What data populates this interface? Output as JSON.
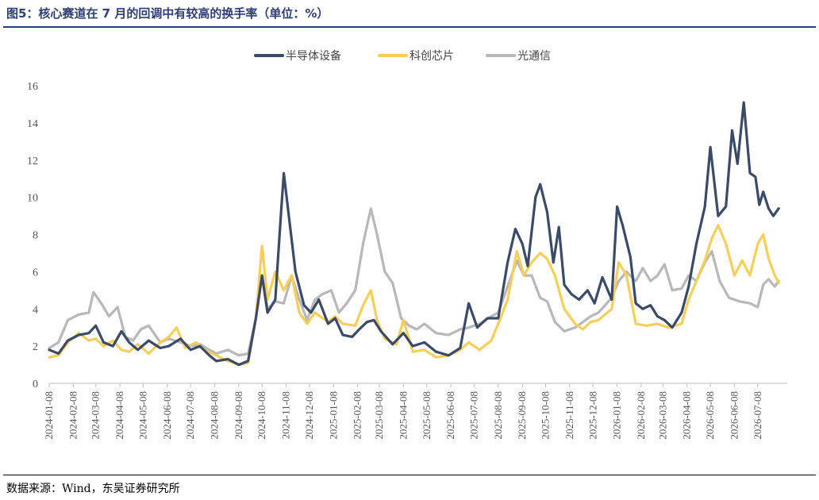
{
  "title": "图5：核心赛道在 7 月的回调中有较高的换手率（单位：%）",
  "source": "数据来源：Wind，东吴证券研究所",
  "chart_data": {
    "type": "line",
    "xlabel": "",
    "ylabel": "",
    "ylim": [
      0,
      16
    ],
    "yticks": [
      0,
      2,
      4,
      6,
      8,
      10,
      12,
      14,
      16
    ],
    "grid": false,
    "legend_position": "top-center",
    "x_ticks": [
      "2024-01-08",
      "2024-02-08",
      "2024-03-08",
      "2024-04-08",
      "2024-05-08",
      "2024-06-08",
      "2024-07-08",
      "2024-08-08",
      "2024-09-08",
      "2024-10-08",
      "2024-11-08",
      "2024-12-08",
      "2025-01-08",
      "2025-02-08",
      "2025-03-08",
      "2025-04-08",
      "2025-05-08",
      "2025-06-08",
      "2025-07-08",
      "2025-08-08",
      "2025-09-08",
      "2025-10-08",
      "2025-11-08",
      "2025-12-08",
      "2026-01-08",
      "2026-02-08",
      "2026-03-08",
      "2026-04-08",
      "2026-05-08",
      "2026-06-08",
      "2026-07-08"
    ],
    "x_start": "2024-01-08",
    "x_end": "2026-08-15",
    "series": [
      {
        "name": "半导体设备",
        "color": "#3b4a66",
        "points": [
          [
            "2024-01-08",
            1.8
          ],
          [
            "2024-01-20",
            1.6
          ],
          [
            "2024-02-01",
            2.3
          ],
          [
            "2024-02-15",
            2.6
          ],
          [
            "2024-02-28",
            2.7
          ],
          [
            "2024-03-08",
            3.1
          ],
          [
            "2024-03-18",
            2.2
          ],
          [
            "2024-03-30",
            2.0
          ],
          [
            "2024-04-10",
            2.8
          ],
          [
            "2024-04-20",
            2.2
          ],
          [
            "2024-05-01",
            1.8
          ],
          [
            "2024-05-15",
            2.3
          ],
          [
            "2024-05-30",
            1.9
          ],
          [
            "2024-06-10",
            2.0
          ],
          [
            "2024-06-25",
            2.4
          ],
          [
            "2024-07-08",
            1.8
          ],
          [
            "2024-07-20",
            2.0
          ],
          [
            "2024-08-01",
            1.5
          ],
          [
            "2024-08-10",
            1.2
          ],
          [
            "2024-08-25",
            1.3
          ],
          [
            "2024-09-08",
            1.0
          ],
          [
            "2024-09-20",
            1.2
          ],
          [
            "2024-09-30",
            3.5
          ],
          [
            "2024-10-08",
            5.8
          ],
          [
            "2024-10-15",
            3.8
          ],
          [
            "2024-10-25",
            4.5
          ],
          [
            "2024-11-01",
            8.9
          ],
          [
            "2024-11-05",
            11.3
          ],
          [
            "2024-11-12",
            8.8
          ],
          [
            "2024-11-20",
            6.0
          ],
          [
            "2024-12-01",
            4.2
          ],
          [
            "2024-12-10",
            3.8
          ],
          [
            "2024-12-20",
            4.5
          ],
          [
            "2025-01-01",
            3.2
          ],
          [
            "2025-01-10",
            3.5
          ],
          [
            "2025-01-20",
            2.6
          ],
          [
            "2025-02-01",
            2.5
          ],
          [
            "2025-02-10",
            2.9
          ],
          [
            "2025-02-20",
            3.3
          ],
          [
            "2025-03-01",
            3.4
          ],
          [
            "2025-03-10",
            2.8
          ],
          [
            "2025-03-25",
            2.1
          ],
          [
            "2025-04-08",
            2.7
          ],
          [
            "2025-04-20",
            2.0
          ],
          [
            "2025-05-05",
            2.2
          ],
          [
            "2025-05-20",
            1.7
          ],
          [
            "2025-06-05",
            1.5
          ],
          [
            "2025-06-20",
            1.9
          ],
          [
            "2025-07-01",
            4.3
          ],
          [
            "2025-07-12",
            3.0
          ],
          [
            "2025-07-25",
            3.5
          ],
          [
            "2025-08-08",
            3.5
          ],
          [
            "2025-08-20",
            6.5
          ],
          [
            "2025-08-30",
            8.3
          ],
          [
            "2025-09-08",
            7.5
          ],
          [
            "2025-09-15",
            6.3
          ],
          [
            "2025-09-25",
            10.0
          ],
          [
            "2025-10-01",
            10.7
          ],
          [
            "2025-10-10",
            9.2
          ],
          [
            "2025-10-18",
            6.5
          ],
          [
            "2025-10-25",
            8.4
          ],
          [
            "2025-11-01",
            5.3
          ],
          [
            "2025-11-10",
            4.8
          ],
          [
            "2025-11-20",
            4.5
          ],
          [
            "2025-12-01",
            5.0
          ],
          [
            "2025-12-10",
            4.3
          ],
          [
            "2025-12-20",
            5.7
          ],
          [
            "2026-01-01",
            4.5
          ],
          [
            "2026-01-08",
            9.5
          ],
          [
            "2026-01-15",
            8.5
          ],
          [
            "2026-01-25",
            6.8
          ],
          [
            "2026-02-01",
            4.3
          ],
          [
            "2026-02-10",
            4.0
          ],
          [
            "2026-02-20",
            4.2
          ],
          [
            "2026-03-01",
            3.6
          ],
          [
            "2026-03-10",
            3.4
          ],
          [
            "2026-03-20",
            3.0
          ],
          [
            "2026-04-01",
            3.8
          ],
          [
            "2026-04-10",
            5.2
          ],
          [
            "2026-04-20",
            7.5
          ],
          [
            "2026-05-01",
            9.5
          ],
          [
            "2026-05-08",
            12.7
          ],
          [
            "2026-05-18",
            9.0
          ],
          [
            "2026-05-28",
            9.5
          ],
          [
            "2026-06-05",
            13.6
          ],
          [
            "2026-06-12",
            11.8
          ],
          [
            "2026-06-20",
            15.1
          ],
          [
            "2026-06-28",
            11.3
          ],
          [
            "2026-07-05",
            11.1
          ],
          [
            "2026-07-10",
            9.6
          ],
          [
            "2026-07-15",
            10.3
          ],
          [
            "2026-07-22",
            9.4
          ],
          [
            "2026-07-28",
            9.0
          ],
          [
            "2026-08-04",
            9.4
          ]
        ]
      },
      {
        "name": "科创芯片",
        "color": "#f6cf5a",
        "points": [
          [
            "2024-01-08",
            1.4
          ],
          [
            "2024-01-20",
            1.5
          ],
          [
            "2024-02-01",
            2.2
          ],
          [
            "2024-02-15",
            2.7
          ],
          [
            "2024-02-28",
            2.3
          ],
          [
            "2024-03-08",
            2.4
          ],
          [
            "2024-03-18",
            2.0
          ],
          [
            "2024-03-30",
            2.3
          ],
          [
            "2024-04-10",
            1.8
          ],
          [
            "2024-04-20",
            1.7
          ],
          [
            "2024-05-01",
            2.1
          ],
          [
            "2024-05-15",
            1.6
          ],
          [
            "2024-05-30",
            2.2
          ],
          [
            "2024-06-10",
            2.5
          ],
          [
            "2024-06-20",
            3.0
          ],
          [
            "2024-07-01",
            1.9
          ],
          [
            "2024-07-15",
            2.2
          ],
          [
            "2024-07-25",
            1.8
          ],
          [
            "2024-08-10",
            1.5
          ],
          [
            "2024-08-25",
            1.2
          ],
          [
            "2024-09-08",
            1.0
          ],
          [
            "2024-09-20",
            1.1
          ],
          [
            "2024-09-30",
            3.5
          ],
          [
            "2024-10-08",
            7.4
          ],
          [
            "2024-10-15",
            4.5
          ],
          [
            "2024-10-25",
            6.0
          ],
          [
            "2024-11-05",
            5.0
          ],
          [
            "2024-11-15",
            5.8
          ],
          [
            "2024-11-25",
            3.8
          ],
          [
            "2024-12-05",
            3.2
          ],
          [
            "2024-12-15",
            3.8
          ],
          [
            "2025-01-01",
            3.3
          ],
          [
            "2025-01-10",
            3.6
          ],
          [
            "2025-01-20",
            3.2
          ],
          [
            "2025-02-05",
            3.1
          ],
          [
            "2025-02-15",
            4.2
          ],
          [
            "2025-02-25",
            5.0
          ],
          [
            "2025-03-05",
            3.4
          ],
          [
            "2025-03-15",
            2.4
          ],
          [
            "2025-03-30",
            2.1
          ],
          [
            "2025-04-08",
            3.4
          ],
          [
            "2025-04-20",
            1.7
          ],
          [
            "2025-05-05",
            1.8
          ],
          [
            "2025-05-20",
            1.4
          ],
          [
            "2025-06-05",
            1.5
          ],
          [
            "2025-06-20",
            1.8
          ],
          [
            "2025-07-01",
            2.2
          ],
          [
            "2025-07-15",
            1.8
          ],
          [
            "2025-07-30",
            2.3
          ],
          [
            "2025-08-08",
            3.2
          ],
          [
            "2025-08-20",
            4.5
          ],
          [
            "2025-09-01",
            7.1
          ],
          [
            "2025-09-10",
            5.8
          ],
          [
            "2025-09-20",
            6.5
          ],
          [
            "2025-10-01",
            7.0
          ],
          [
            "2025-10-10",
            6.7
          ],
          [
            "2025-10-20",
            5.8
          ],
          [
            "2025-11-01",
            4.0
          ],
          [
            "2025-11-15",
            3.2
          ],
          [
            "2025-11-25",
            2.9
          ],
          [
            "2025-12-05",
            3.3
          ],
          [
            "2025-12-15",
            3.4
          ],
          [
            "2026-01-01",
            4.0
          ],
          [
            "2026-01-10",
            6.5
          ],
          [
            "2026-01-20",
            5.8
          ],
          [
            "2026-02-01",
            3.2
          ],
          [
            "2026-02-15",
            3.1
          ],
          [
            "2026-03-01",
            3.2
          ],
          [
            "2026-03-15",
            3.0
          ],
          [
            "2026-04-01",
            3.2
          ],
          [
            "2026-04-10",
            4.5
          ],
          [
            "2026-04-20",
            5.5
          ],
          [
            "2026-05-01",
            6.6
          ],
          [
            "2026-05-10",
            7.8
          ],
          [
            "2026-05-18",
            8.5
          ],
          [
            "2026-05-28",
            7.5
          ],
          [
            "2026-06-08",
            5.8
          ],
          [
            "2026-06-18",
            6.6
          ],
          [
            "2026-06-28",
            5.8
          ],
          [
            "2026-07-08",
            7.5
          ],
          [
            "2026-07-15",
            8.0
          ],
          [
            "2026-07-22",
            6.7
          ],
          [
            "2026-07-30",
            5.8
          ],
          [
            "2026-08-04",
            5.4
          ]
        ]
      },
      {
        "name": "光通信",
        "color": "#b8b8b8",
        "points": [
          [
            "2024-01-08",
            1.9
          ],
          [
            "2024-01-20",
            2.2
          ],
          [
            "2024-02-01",
            3.4
          ],
          [
            "2024-02-15",
            3.7
          ],
          [
            "2024-02-28",
            3.8
          ],
          [
            "2024-03-05",
            4.9
          ],
          [
            "2024-03-15",
            4.3
          ],
          [
            "2024-03-25",
            3.6
          ],
          [
            "2024-04-05",
            4.1
          ],
          [
            "2024-04-15",
            2.5
          ],
          [
            "2024-04-25",
            2.3
          ],
          [
            "2024-05-05",
            2.9
          ],
          [
            "2024-05-15",
            3.1
          ],
          [
            "2024-05-30",
            2.2
          ],
          [
            "2024-06-10",
            2.4
          ],
          [
            "2024-06-25",
            2.2
          ],
          [
            "2024-07-08",
            2.0
          ],
          [
            "2024-07-20",
            2.1
          ],
          [
            "2024-08-01",
            1.8
          ],
          [
            "2024-08-10",
            1.6
          ],
          [
            "2024-08-25",
            1.8
          ],
          [
            "2024-09-08",
            1.5
          ],
          [
            "2024-09-20",
            1.6
          ],
          [
            "2024-09-30",
            3.5
          ],
          [
            "2024-10-08",
            5.8
          ],
          [
            "2024-10-15",
            4.0
          ],
          [
            "2024-10-25",
            4.4
          ],
          [
            "2024-11-05",
            4.3
          ],
          [
            "2024-11-15",
            5.8
          ],
          [
            "2024-11-25",
            4.5
          ],
          [
            "2024-12-05",
            3.4
          ],
          [
            "2024-12-15",
            4.5
          ],
          [
            "2024-12-25",
            4.8
          ],
          [
            "2025-01-05",
            5.0
          ],
          [
            "2025-01-15",
            3.8
          ],
          [
            "2025-01-25",
            4.3
          ],
          [
            "2025-02-05",
            5.0
          ],
          [
            "2025-02-15",
            7.5
          ],
          [
            "2025-02-25",
            9.4
          ],
          [
            "2025-03-05",
            8.0
          ],
          [
            "2025-03-15",
            6.0
          ],
          [
            "2025-03-25",
            5.4
          ],
          [
            "2025-04-05",
            3.5
          ],
          [
            "2025-04-15",
            3.1
          ],
          [
            "2025-04-25",
            2.9
          ],
          [
            "2025-05-05",
            3.2
          ],
          [
            "2025-05-20",
            2.7
          ],
          [
            "2025-06-05",
            2.6
          ],
          [
            "2025-06-20",
            2.9
          ],
          [
            "2025-07-01",
            3.0
          ],
          [
            "2025-07-15",
            3.2
          ],
          [
            "2025-07-30",
            3.6
          ],
          [
            "2025-08-08",
            3.8
          ],
          [
            "2025-08-20",
            5.2
          ],
          [
            "2025-09-01",
            6.6
          ],
          [
            "2025-09-10",
            5.8
          ],
          [
            "2025-09-20",
            5.8
          ],
          [
            "2025-10-01",
            4.6
          ],
          [
            "2025-10-10",
            4.4
          ],
          [
            "2025-10-20",
            3.3
          ],
          [
            "2025-11-01",
            2.8
          ],
          [
            "2025-11-15",
            3.0
          ],
          [
            "2025-11-25",
            3.3
          ],
          [
            "2025-12-05",
            3.6
          ],
          [
            "2025-12-15",
            3.8
          ],
          [
            "2026-01-01",
            4.6
          ],
          [
            "2026-01-10",
            5.5
          ],
          [
            "2026-01-20",
            6.0
          ],
          [
            "2026-02-01",
            5.5
          ],
          [
            "2026-02-10",
            6.2
          ],
          [
            "2026-02-20",
            5.5
          ],
          [
            "2026-03-01",
            5.8
          ],
          [
            "2026-03-10",
            6.4
          ],
          [
            "2026-03-20",
            5.0
          ],
          [
            "2026-04-01",
            5.1
          ],
          [
            "2026-04-10",
            5.8
          ],
          [
            "2026-04-20",
            5.5
          ],
          [
            "2026-05-01",
            6.5
          ],
          [
            "2026-05-10",
            7.1
          ],
          [
            "2026-05-20",
            5.5
          ],
          [
            "2026-06-01",
            4.6
          ],
          [
            "2026-06-15",
            4.4
          ],
          [
            "2026-06-28",
            4.3
          ],
          [
            "2026-07-08",
            4.1
          ],
          [
            "2026-07-15",
            5.3
          ],
          [
            "2026-07-22",
            5.6
          ],
          [
            "2026-07-30",
            5.2
          ],
          [
            "2026-08-04",
            5.5
          ]
        ]
      }
    ]
  }
}
